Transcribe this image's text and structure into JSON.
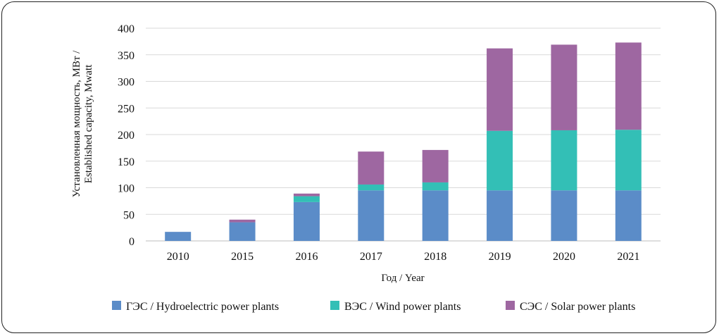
{
  "chart_data": {
    "type": "bar",
    "stacked": true,
    "title": "",
    "xlabel": "Год / Year",
    "ylabel_lines": [
      "Установленная мощность, МВт /",
      "Established capacity, Mwatt"
    ],
    "categories": [
      "2010",
      "2015",
      "2016",
      "2017",
      "2018",
      "2019",
      "2020",
      "2021"
    ],
    "ylim": [
      0,
      400
    ],
    "yticks": [
      0,
      50,
      100,
      150,
      200,
      250,
      300,
      350,
      400
    ],
    "grid": true,
    "legend_position": "bottom",
    "series": [
      {
        "name": "ГЭС / Hydroelectric power plants",
        "color": "#5b8cc8",
        "values": [
          17,
          35,
          73,
          95,
          95,
          95,
          95,
          95
        ]
      },
      {
        "name": "ВЭС / Wind power plants",
        "color": "#33bfb6",
        "values": [
          0,
          0,
          11,
          11,
          15,
          112,
          113,
          114
        ]
      },
      {
        "name": "СЭС / Solar power plants",
        "color": "#9e67a1",
        "values": [
          0,
          5,
          5,
          62,
          61,
          155,
          161,
          164
        ]
      }
    ]
  }
}
